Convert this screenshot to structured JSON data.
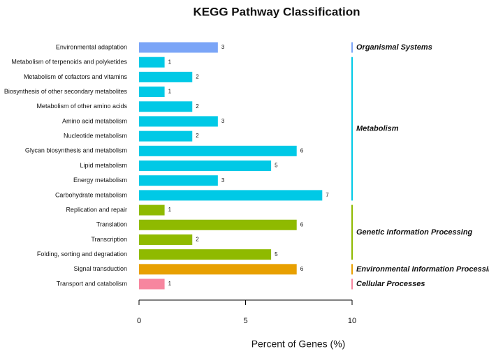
{
  "chart_data": {
    "type": "bar",
    "orientation": "horizontal",
    "title": "KEGG Pathway Classification",
    "x_label": "Percent of Genes (%)",
    "xlim": [
      0,
      10
    ],
    "xticks": [
      0,
      5,
      10
    ],
    "groups": [
      {
        "name": "Organismal Systems",
        "color": "#7ba5f7",
        "categories": [
          "Environmental adaptation"
        ],
        "values": [
          3.7
        ],
        "counts": [
          3
        ]
      },
      {
        "name": "Metabolism",
        "color": "#00c9e6",
        "categories": [
          "Metabolism of terpenoids and polyketides",
          "Metabolism of cofactors and vitamins",
          "Biosynthesis of other secondary metabolites",
          "Metabolism of other amino acids",
          "Amino acid metabolism",
          "Nucleotide metabolism",
          "Glycan biosynthesis and metabolism",
          "Lipid metabolism",
          "Energy metabolism",
          "Carbohydrate metabolism"
        ],
        "values": [
          1.2,
          2.5,
          1.2,
          2.5,
          3.7,
          2.5,
          7.4,
          6.2,
          3.7,
          8.6
        ],
        "counts": [
          1,
          2,
          1,
          2,
          3,
          2,
          6,
          5,
          3,
          7
        ]
      },
      {
        "name": "Genetic Information Processing",
        "color": "#8fba00",
        "categories": [
          "Replication and repair",
          "Translation",
          "Transcription",
          "Folding, sorting and degradation"
        ],
        "values": [
          1.2,
          7.4,
          2.5,
          6.2
        ],
        "counts": [
          1,
          6,
          2,
          5
        ]
      },
      {
        "name": "Environmental Information Processing",
        "color": "#e8a000",
        "categories": [
          "Signal transduction"
        ],
        "values": [
          7.4
        ],
        "counts": [
          6
        ]
      },
      {
        "name": "Cellular Processes",
        "color": "#f7869f",
        "categories": [
          "Transport and catabolism"
        ],
        "values": [
          1.2
        ],
        "counts": [
          1
        ]
      }
    ]
  }
}
